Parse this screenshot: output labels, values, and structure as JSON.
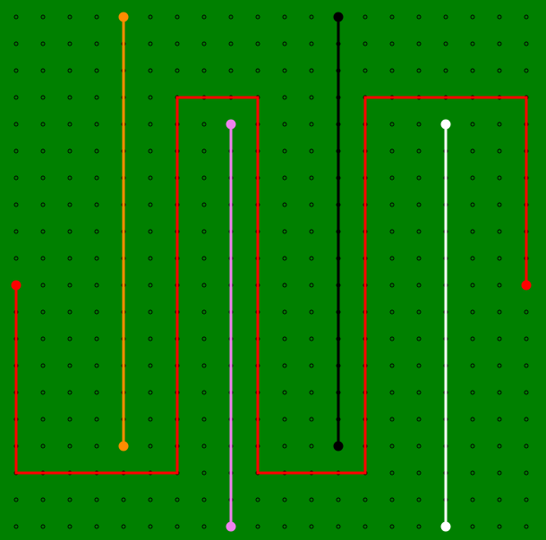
{
  "board": {
    "background_color": "#008000",
    "grid_dot_color": "#000000",
    "grid": {
      "columns": 20,
      "rows": 20
    }
  },
  "paths": [
    {
      "id": "red",
      "color": "#ff0000",
      "endpoints_marked": true,
      "points": [
        [
          0,
          10
        ],
        [
          0,
          17
        ],
        [
          6,
          17
        ],
        [
          6,
          3
        ],
        [
          9,
          3
        ],
        [
          9,
          17
        ],
        [
          13,
          17
        ],
        [
          13,
          3
        ],
        [
          19,
          3
        ],
        [
          19,
          10
        ]
      ]
    },
    {
      "id": "orange",
      "color": "#ff8c00",
      "endpoints_marked": true,
      "points": [
        [
          4,
          0
        ],
        [
          4,
          16
        ]
      ]
    },
    {
      "id": "violet",
      "color": "#ee82ee",
      "endpoints_marked": true,
      "points": [
        [
          8,
          4
        ],
        [
          8,
          19
        ]
      ]
    },
    {
      "id": "black",
      "color": "#000000",
      "endpoints_marked": true,
      "points": [
        [
          12,
          0
        ],
        [
          12,
          16
        ]
      ]
    },
    {
      "id": "white",
      "color": "#ffffff",
      "endpoints_marked": true,
      "points": [
        [
          16,
          4
        ],
        [
          16,
          19
        ]
      ]
    }
  ]
}
